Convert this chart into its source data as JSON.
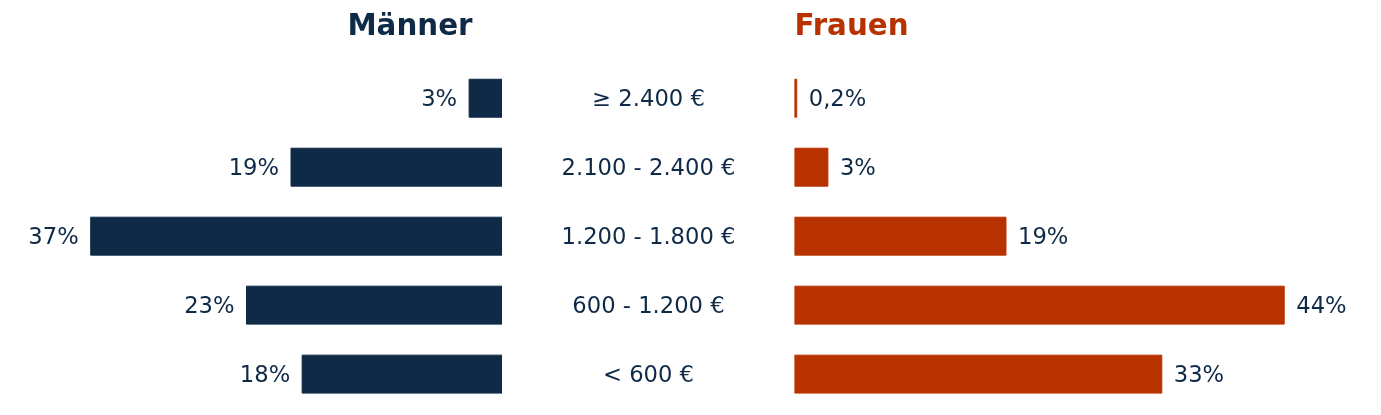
{
  "chart_data": [
    {
      "type": "bar",
      "orientation": "horizontal",
      "title": "Männer",
      "categories": [
        "≥ 2.400 €",
        "2.100 - 2.400 €",
        "1.200 - 1.800 €",
        "600 - 1.200 €",
        "< 600 €"
      ],
      "values": [
        3,
        19,
        37,
        23,
        18
      ],
      "value_labels": [
        "3%",
        "19%",
        "37%",
        "23%",
        "18%"
      ],
      "color": "#0f2a47",
      "tick_labels": "y"
    },
    {
      "type": "bar",
      "orientation": "horizontal",
      "title": "Frauen",
      "values": [
        0.2,
        3,
        19,
        44,
        33
      ],
      "value_labels": [
        "0,2%",
        "3%",
        "19%",
        "44%",
        "33%"
      ],
      "color": "#b83200",
      "tick_labels": false
    }
  ]
}
